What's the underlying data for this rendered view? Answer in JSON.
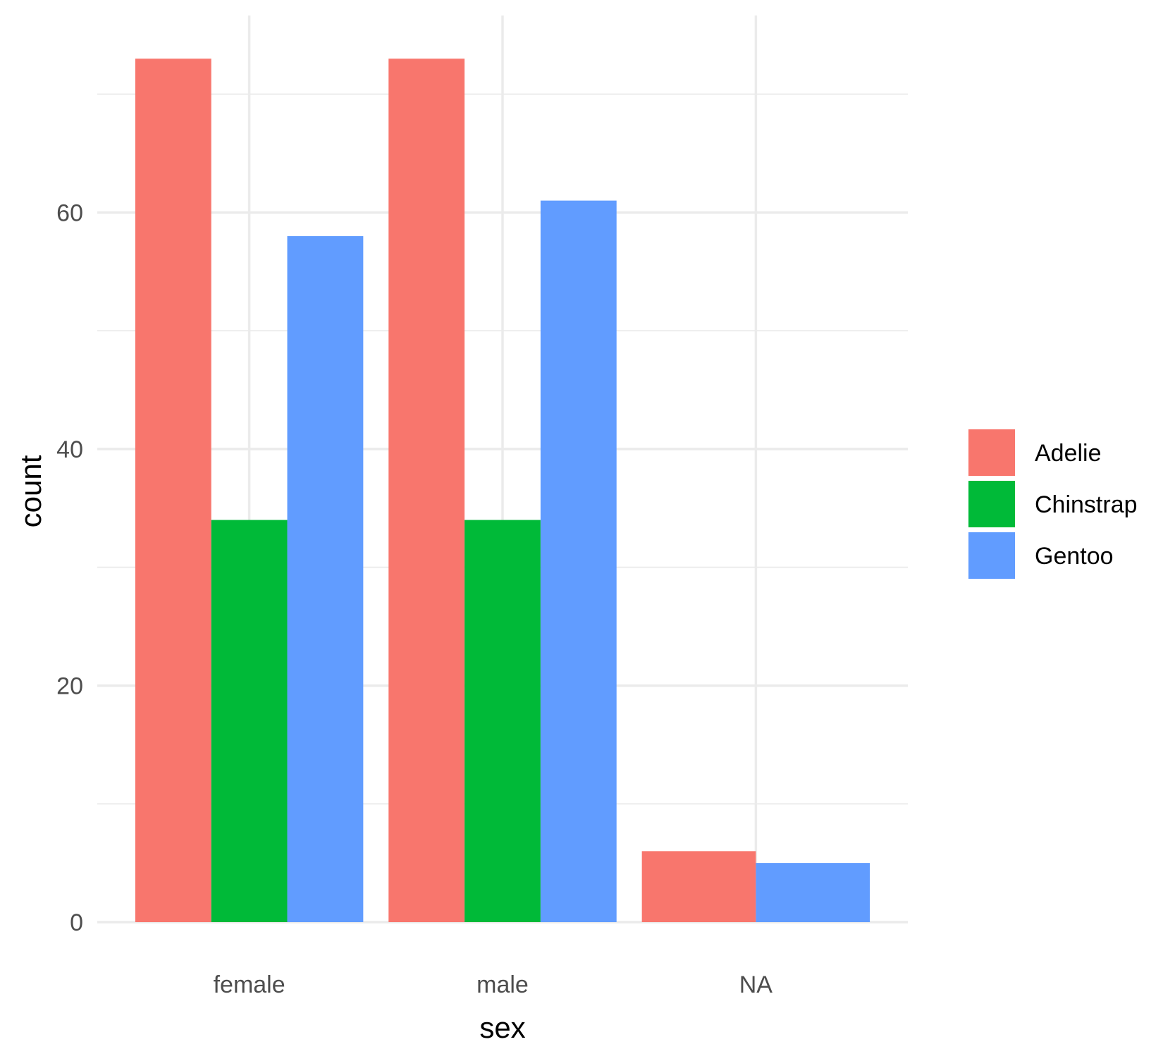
{
  "chart_data": {
    "type": "bar",
    "xlabel": "sex",
    "ylabel": "count",
    "categories": [
      "female",
      "male",
      "NA"
    ],
    "series": [
      {
        "name": "Adelie",
        "color": "#F8766D",
        "values": [
          73,
          73,
          6
        ]
      },
      {
        "name": "Chinstrap",
        "color": "#00BA38",
        "values": [
          34,
          34,
          null
        ]
      },
      {
        "name": "Gentoo",
        "color": "#619CFF",
        "values": [
          58,
          61,
          5
        ]
      }
    ],
    "y_ticks": [
      0,
      20,
      40,
      60
    ],
    "y_tick_labels": [
      "0",
      "20",
      "40",
      "60"
    ],
    "ylim": [
      0,
      76.65
    ],
    "grid": true,
    "legend_position": "right",
    "background": "#FFFFFF",
    "grid_color": "#EBEBEB"
  }
}
